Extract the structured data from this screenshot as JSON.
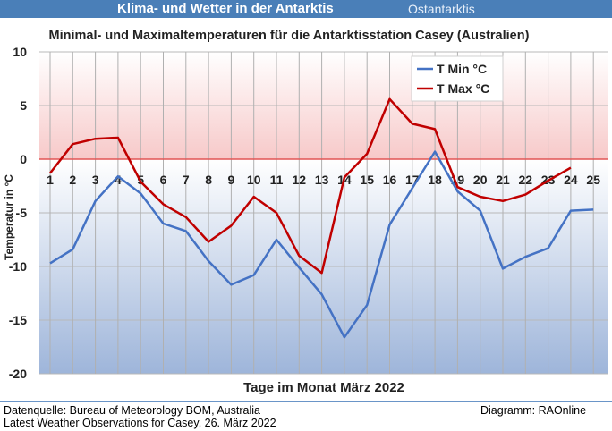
{
  "header": {
    "title": "Klima- und Wetter in der Antarktis",
    "subtitle": "Ostantarktis"
  },
  "footer": {
    "source_line1": "Datenquelle: Bureau of Meteorology BOM, Australia",
    "source_line2": "Latest Weather Observations for Casey, 26. März 2022",
    "credit": "Diagramm: RAOnline"
  },
  "chart_data": {
    "type": "line",
    "title": "Minimal- und Maximaltemperaturen für die Antarktisstation Casey (Australien)",
    "xlabel": "Tage im Monat März 2022",
    "ylabel": "Temperatur in °C",
    "ylim": [
      -20,
      10
    ],
    "yticks": [
      10,
      5,
      0,
      -5,
      -10,
      -15,
      -20
    ],
    "grid": true,
    "legend_position": "top-right",
    "x": [
      1,
      2,
      3,
      4,
      5,
      6,
      7,
      8,
      9,
      10,
      11,
      12,
      13,
      14,
      15,
      16,
      17,
      18,
      19,
      20,
      21,
      22,
      23,
      24,
      25
    ],
    "series": [
      {
        "name": "T Min °C",
        "color": "#4472c4",
        "values": [
          -9.7,
          -8.4,
          -3.9,
          -1.6,
          -3.2,
          -6.0,
          -6.7,
          -9.5,
          -11.7,
          -10.8,
          -7.5,
          -10.1,
          -12.6,
          -16.6,
          -13.6,
          -6.1,
          -2.7,
          0.7,
          -3.0,
          -4.8,
          -10.2,
          -9.1,
          -8.3,
          -4.8,
          -4.7
        ]
      },
      {
        "name": "T Max °C",
        "color": "#c00000",
        "values": [
          -1.3,
          1.4,
          1.9,
          2.0,
          -2.1,
          -4.2,
          -5.4,
          -7.7,
          -6.2,
          -3.5,
          -5.0,
          -9.0,
          -10.6,
          -1.7,
          0.5,
          5.6,
          3.3,
          2.8,
          -2.6,
          -3.5,
          -3.9,
          -3.3,
          -2.0,
          -0.8,
          null
        ]
      }
    ]
  }
}
